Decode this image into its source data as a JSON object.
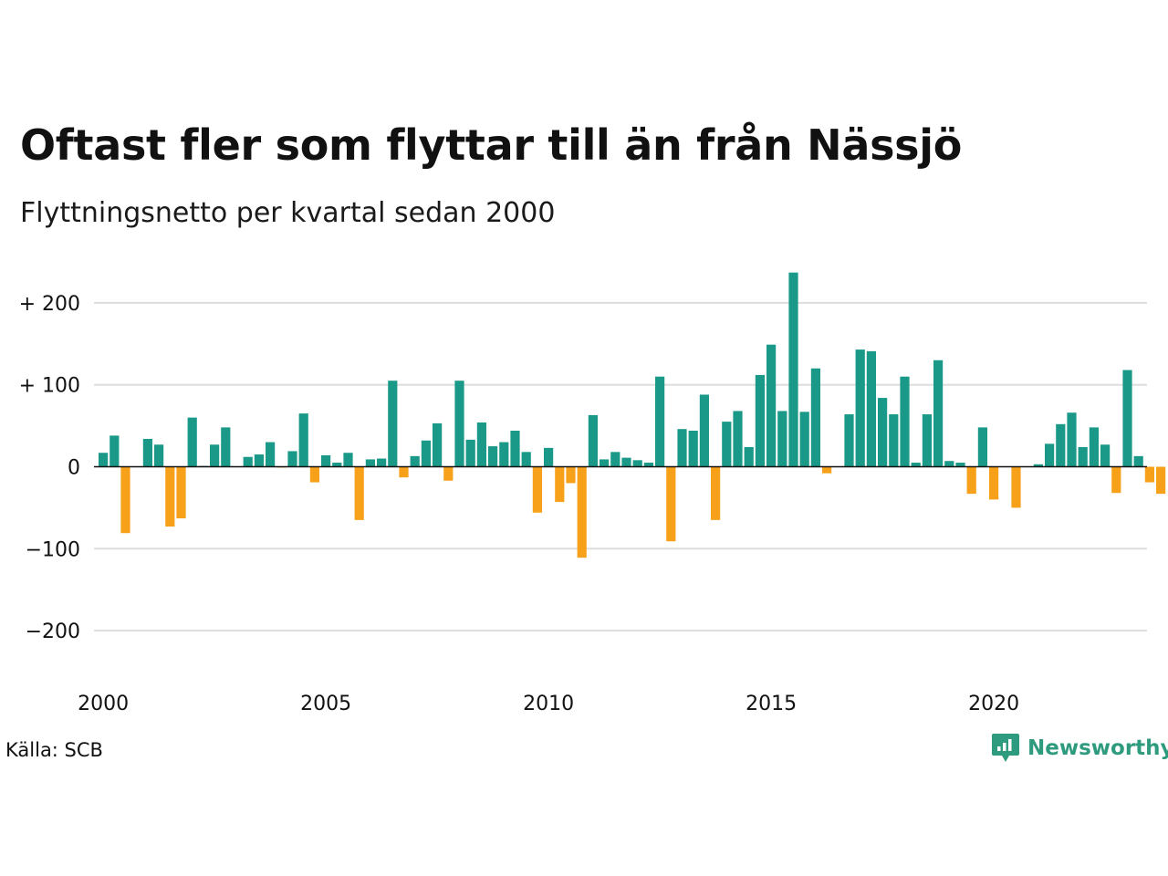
{
  "header": {
    "title": "Oftast fler som flyttar till än från Nässjö",
    "subtitle": "Flyttningsnetto per kvartal sedan 2000"
  },
  "footer": {
    "source": "Källa: SCB",
    "brand": "Newsworthy"
  },
  "colors": {
    "positive": "#1a9988",
    "negative": "#f7a11a",
    "grid": "#dddddd",
    "baseline": "#111111",
    "brand": "#2e9b7f"
  },
  "chart_data": {
    "type": "bar",
    "ylim": [
      -230,
      240
    ],
    "yticks": [
      200,
      100,
      0,
      -100,
      -200
    ],
    "ytick_labels": [
      "+ 200",
      "+ 100",
      "0",
      "−100",
      "−200"
    ],
    "xticks": [
      "2000",
      "2005",
      "2010",
      "2015",
      "2020"
    ],
    "grid": true,
    "categories": [
      "2000K1",
      "2000K2",
      "2000K3",
      "2000K4",
      "2001K1",
      "2001K2",
      "2001K3",
      "2001K4",
      "2002K1",
      "2002K2",
      "2002K3",
      "2002K4",
      "2003K1",
      "2003K2",
      "2003K3",
      "2003K4",
      "2004K1",
      "2004K2",
      "2004K3",
      "2004K4",
      "2005K1",
      "2005K2",
      "2005K3",
      "2005K4",
      "2006K1",
      "2006K2",
      "2006K3",
      "2006K4",
      "2007K1",
      "2007K2",
      "2007K3",
      "2007K4",
      "2008K1",
      "2008K2",
      "2008K3",
      "2008K4",
      "2009K1",
      "2009K2",
      "2009K3",
      "2009K4",
      "2010K1",
      "2010K2",
      "2010K3",
      "2010K4",
      "2011K1",
      "2011K2",
      "2011K3",
      "2011K4",
      "2012K1",
      "2012K2",
      "2012K3",
      "2012K4",
      "2013K1",
      "2013K2",
      "2013K3",
      "2013K4",
      "2014K1",
      "2014K2",
      "2014K3",
      "2014K4",
      "2015K1",
      "2015K2",
      "2015K3",
      "2015K4",
      "2016K1",
      "2016K2",
      "2016K3",
      "2016K4",
      "2017K1",
      "2017K2",
      "2017K3",
      "2017K4",
      "2018K1",
      "2018K2",
      "2018K3",
      "2018K4",
      "2019K1",
      "2019K2",
      "2019K3",
      "2019K4",
      "2020K1",
      "2020K2",
      "2020K3",
      "2020K4",
      "2021K1",
      "2021K2",
      "2021K3",
      "2021K4",
      "2022K1",
      "2022K2",
      "2022K3",
      "2022K4",
      "2023K1",
      "2023K2",
      "2023K3",
      "2023K4"
    ],
    "values": [
      17,
      38,
      -81,
      0,
      34,
      27,
      -73,
      -63,
      60,
      1,
      27,
      48,
      0,
      12,
      15,
      30,
      -1,
      19,
      65,
      -19,
      14,
      5,
      17,
      -65,
      9,
      10,
      105,
      -13,
      13,
      32,
      53,
      -17,
      105,
      33,
      54,
      25,
      30,
      44,
      18,
      -56,
      23,
      -43,
      -20,
      -111,
      63,
      9,
      18,
      11,
      8,
      5,
      110,
      -91,
      46,
      44,
      88,
      -65,
      55,
      68,
      24,
      112,
      149,
      68,
      237,
      67,
      120,
      -8,
      0,
      64,
      143,
      141,
      84,
      64,
      110,
      5,
      64,
      130,
      7,
      5,
      -33,
      48,
      -40,
      0,
      -50,
      0,
      3,
      28,
      52,
      66,
      24,
      48,
      27,
      -32,
      118,
      13,
      -19,
      -33
    ]
  }
}
